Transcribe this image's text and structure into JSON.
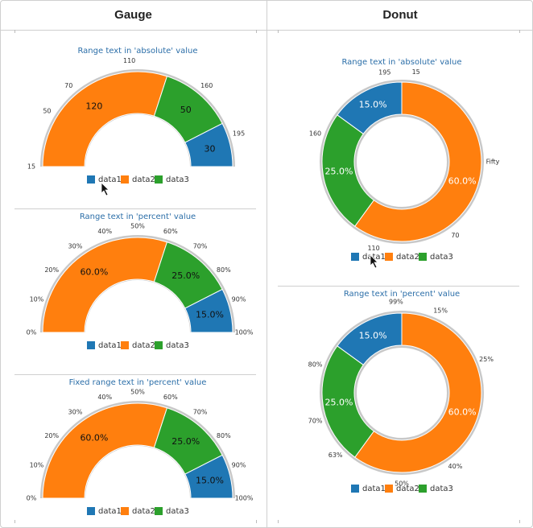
{
  "columns": {
    "gauge": "Gauge",
    "donut": "Donut"
  },
  "colors": {
    "data1": "#1f77b4",
    "data2": "#ff7f0e",
    "data3": "#2ca02c"
  },
  "chart_data": [
    {
      "id": "gauge-absolute",
      "type": "gauge",
      "title": "Range text in 'absolute' value",
      "series": [
        {
          "name": "data1",
          "value": 30
        },
        {
          "name": "data2",
          "value": 120
        },
        {
          "name": "data3",
          "value": 50
        }
      ],
      "order": [
        "data2",
        "data3",
        "data1"
      ],
      "value_labels": {
        "data2": "120",
        "data3": "50",
        "data1": "30"
      },
      "range_text": [
        {
          "text": "15",
          "frac": 0
        },
        {
          "text": "50",
          "frac": 0.175
        },
        {
          "text": "70",
          "frac": 0.275
        },
        {
          "text": "110",
          "frac": 0.475
        },
        {
          "text": "160",
          "frac": 0.725
        },
        {
          "text": "195",
          "frac": 0.9
        }
      ],
      "legend": [
        "data1",
        "data2",
        "data3"
      ]
    },
    {
      "id": "gauge-percent",
      "type": "gauge",
      "title": "Range text in 'percent' value",
      "series": [
        {
          "name": "data1",
          "value": 30
        },
        {
          "name": "data2",
          "value": 120
        },
        {
          "name": "data3",
          "value": 50
        }
      ],
      "order": [
        "data2",
        "data3",
        "data1"
      ],
      "value_labels": {
        "data2": "60.0%",
        "data3": "25.0%",
        "data1": "15.0%"
      },
      "range_text": [
        {
          "text": "0%",
          "frac": 0
        },
        {
          "text": "10%",
          "frac": 0.1
        },
        {
          "text": "20%",
          "frac": 0.2
        },
        {
          "text": "30%",
          "frac": 0.3
        },
        {
          "text": "40%",
          "frac": 0.4
        },
        {
          "text": "50%",
          "frac": 0.5
        },
        {
          "text": "60%",
          "frac": 0.6
        },
        {
          "text": "70%",
          "frac": 0.7
        },
        {
          "text": "80%",
          "frac": 0.8
        },
        {
          "text": "90%",
          "frac": 0.9
        },
        {
          "text": "100%",
          "frac": 1
        }
      ],
      "legend": [
        "data1",
        "data2",
        "data3"
      ]
    },
    {
      "id": "gauge-fixed-percent",
      "type": "gauge",
      "title": "Fixed range text in 'percent' value",
      "series": [
        {
          "name": "data1",
          "value": 30
        },
        {
          "name": "data2",
          "value": 120
        },
        {
          "name": "data3",
          "value": 50
        }
      ],
      "order": [
        "data2",
        "data3",
        "data1"
      ],
      "value_labels": {
        "data2": "60.0%",
        "data3": "25.0%",
        "data1": "15.0%"
      },
      "range_text": [
        {
          "text": "0%",
          "frac": 0
        },
        {
          "text": "10%",
          "frac": 0.1
        },
        {
          "text": "20%",
          "frac": 0.2
        },
        {
          "text": "30%",
          "frac": 0.3
        },
        {
          "text": "40%",
          "frac": 0.4
        },
        {
          "text": "50%",
          "frac": 0.5
        },
        {
          "text": "60%",
          "frac": 0.6
        },
        {
          "text": "70%",
          "frac": 0.7
        },
        {
          "text": "80%",
          "frac": 0.8
        },
        {
          "text": "90%",
          "frac": 0.9
        },
        {
          "text": "100%",
          "frac": 1
        }
      ],
      "legend": [
        "data1",
        "data2",
        "data3"
      ]
    },
    {
      "id": "donut-absolute",
      "type": "donut",
      "title": "Range text in 'absolute' value",
      "series": [
        {
          "name": "data1",
          "value": 30
        },
        {
          "name": "data2",
          "value": 120
        },
        {
          "name": "data3",
          "value": 50
        }
      ],
      "order": [
        "data2",
        "data3",
        "data1"
      ],
      "value_labels": {
        "data2": "60.0%",
        "data3": "25.0%",
        "data1": "15.0%"
      },
      "range_text": [
        {
          "text": "15",
          "frac": 0.025
        },
        {
          "text": "Fifty",
          "frac": 0.25
        },
        {
          "text": "70",
          "frac": 0.4
        },
        {
          "text": "110",
          "frac": 0.55
        },
        {
          "text": "160",
          "frac": 0.8
        },
        {
          "text": "195",
          "frac": 0.97
        }
      ],
      "legend": [
        "data1",
        "data2",
        "data3"
      ]
    },
    {
      "id": "donut-percent",
      "type": "donut",
      "title": "Range text in 'percent' value",
      "series": [
        {
          "name": "data1",
          "value": 30
        },
        {
          "name": "data2",
          "value": 120
        },
        {
          "name": "data3",
          "value": 50
        }
      ],
      "order": [
        "data2",
        "data3",
        "data1"
      ],
      "value_labels": {
        "data2": "60.0%",
        "data3": "25.0%",
        "data1": "15.0%"
      },
      "range_text": [
        {
          "text": "15%",
          "frac": 0.07
        },
        {
          "text": "25%",
          "frac": 0.19
        },
        {
          "text": "40%",
          "frac": 0.4
        },
        {
          "text": "50%",
          "frac": 0.5
        },
        {
          "text": "63%",
          "frac": 0.63
        },
        {
          "text": "70%",
          "frac": 0.7
        },
        {
          "text": "80%",
          "frac": 0.8
        },
        {
          "text": "99%",
          "frac": 0.99
        }
      ],
      "legend": [
        "data1",
        "data2",
        "data3"
      ]
    }
  ]
}
